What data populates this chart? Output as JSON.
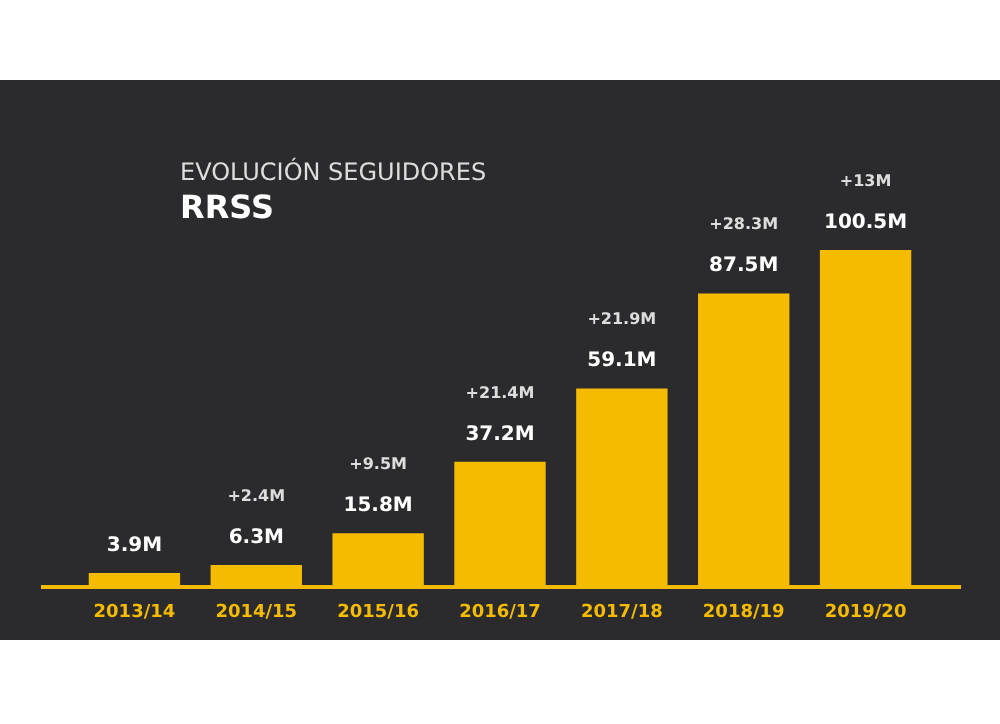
{
  "chart_data": {
    "type": "bar",
    "title": "EVOLUCIÓN SEGUIDORES",
    "subtitle": "RRSS",
    "categories": [
      "2013/14",
      "2014/15",
      "2015/16",
      "2016/17",
      "2017/18",
      "2018/19",
      "2019/20"
    ],
    "values": [
      3.9,
      6.3,
      15.8,
      37.2,
      59.1,
      87.5,
      100.5
    ],
    "value_labels": [
      "3.9M",
      "6.3M",
      "15.8M",
      "37.2M",
      "59.1M",
      "87.5M",
      "100.5M"
    ],
    "color": "#f5bb00",
    "annotations": [
      "+2.4M",
      "+9.5M",
      "+21.4M",
      "+21.9M",
      "+28.3M",
      "+13M"
    ],
    "grid": false
  }
}
